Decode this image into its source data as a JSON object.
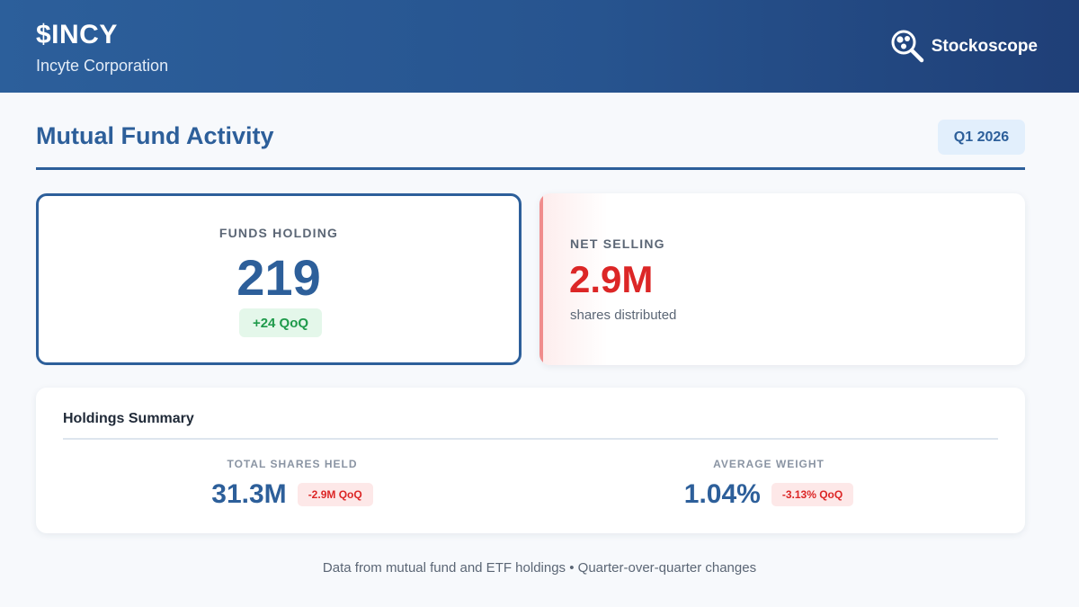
{
  "header": {
    "ticker": "$INCY",
    "company": "Incyte Corporation",
    "brand": {
      "name": "Stockoscope",
      "icon": "magnifier-logo-icon"
    }
  },
  "section": {
    "title": "Mutual Fund Activity",
    "quarter": "Q1 2026"
  },
  "funds_holding": {
    "label": "FUNDS HOLDING",
    "value": "219",
    "change": "+24 QoQ"
  },
  "net_selling": {
    "label": "NET SELLING",
    "value": "2.9M",
    "caption": "shares distributed"
  },
  "holdings_summary": {
    "title": "Holdings Summary",
    "metrics": [
      {
        "label": "TOTAL SHARES HELD",
        "value": "31.3M",
        "change": "-2.9M QoQ"
      },
      {
        "label": "AVERAGE WEIGHT",
        "value": "1.04%",
        "change": "-3.13% QoQ"
      }
    ]
  },
  "footer": {
    "note": "Data from mutual fund and ETF holdings • Quarter-over-quarter changes"
  },
  "colors": {
    "header_start": "#2c5f9b",
    "header_end": "#1f3f77",
    "accent_blue": "#2d5f9a",
    "positive_green": "#1f9a4b",
    "negative_red": "#dc2626"
  }
}
